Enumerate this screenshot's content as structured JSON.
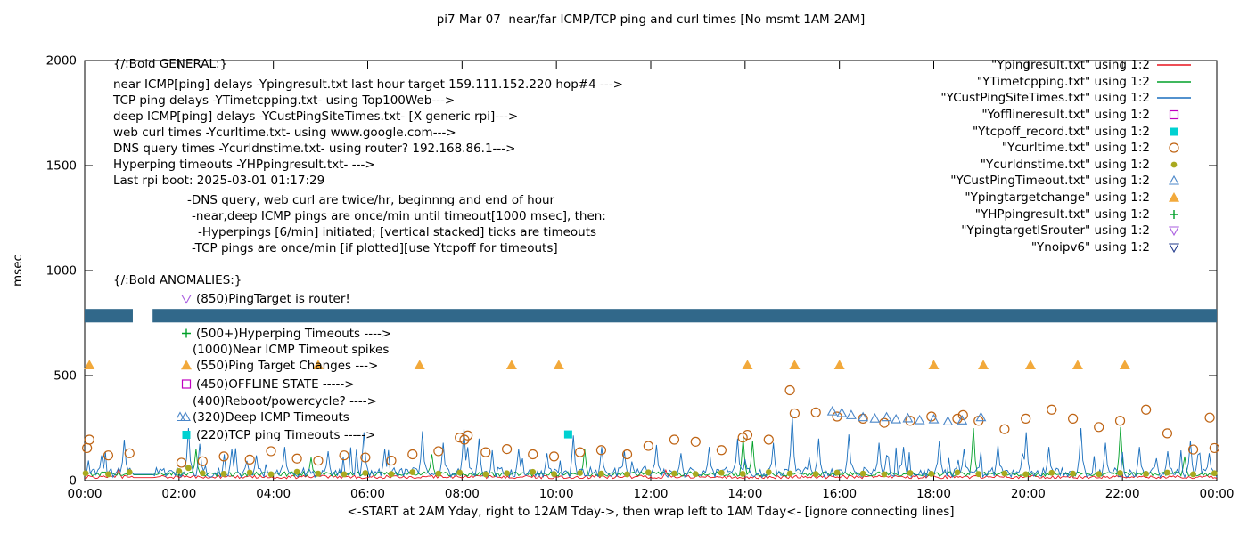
{
  "chart_data": {
    "type": "line",
    "title": "pi7 Mar 07  near/far ICMP/TCP ping and curl times [No msmt 1AM-2AM]",
    "xlabel": "<-START at 2AM Yday, right to 12AM Tday->, then wrap left to 1AM Tday<- [ignore connecting lines]",
    "ylabel": "msec",
    "x_range_hours": [
      0,
      24
    ],
    "ylim": [
      0,
      2000
    ],
    "yticks": [
      0,
      500,
      1000,
      1500,
      2000
    ],
    "xtick_labels": [
      "00:00",
      "02:00",
      "04:00",
      "06:00",
      "08:00",
      "10:00",
      "12:00",
      "14:00",
      "16:00",
      "18:00",
      "20:00",
      "22:00",
      "00:00"
    ],
    "grid": false,
    "legend_position": "top-right",
    "no_measurement_gap_hours": [
      1.0,
      1.45
    ],
    "seed": 20250307,
    "band": {
      "name": "Ynoipv6",
      "color": "#31688a",
      "level_msec": 785,
      "half_height_msec": 32,
      "segments_hours": [
        [
          0,
          1.02
        ],
        [
          1.44,
          24
        ]
      ]
    },
    "lines": [
      {
        "name": "Ypingresult.txt",
        "color": "#e8141e",
        "base_msec": 14,
        "noise_msec": 8,
        "spikes": [
          [
            0.7,
            55
          ],
          [
            12.3,
            50
          ]
        ]
      },
      {
        "name": "YTimetcpping.txt",
        "color": "#00a028",
        "base_msec": 27,
        "noise_msec": 11,
        "spikes": [
          [
            2.35,
            150
          ],
          [
            4.8,
            110
          ],
          [
            7.35,
            125
          ],
          [
            10.6,
            150
          ],
          [
            13.95,
            205
          ],
          [
            14.15,
            190
          ],
          [
            18.85,
            250
          ],
          [
            21.95,
            255
          ],
          [
            23.3,
            115
          ]
        ]
      },
      {
        "name": "YCustPingSiteTimes.txt",
        "color": "#1a6fbd",
        "base_msec": 30,
        "noise_msec": 24,
        "burst_prob": 0.08,
        "burst_amp": 110,
        "spikes": [
          [
            0.35,
            120
          ],
          [
            0.82,
            195
          ],
          [
            2.2,
            250
          ],
          [
            2.45,
            175
          ],
          [
            3.1,
            150
          ],
          [
            3.65,
            120
          ],
          [
            4.25,
            160
          ],
          [
            5.15,
            140
          ],
          [
            5.9,
            230
          ],
          [
            6.35,
            150
          ],
          [
            7.15,
            235
          ],
          [
            7.6,
            180
          ],
          [
            8.05,
            250
          ],
          [
            8.35,
            200
          ],
          [
            9.2,
            150
          ],
          [
            9.8,
            130
          ],
          [
            10.35,
            215
          ],
          [
            10.95,
            160
          ],
          [
            11.45,
            140
          ],
          [
            12.1,
            170
          ],
          [
            12.65,
            130
          ],
          [
            13.25,
            160
          ],
          [
            13.85,
            200
          ],
          [
            14.6,
            180
          ],
          [
            15.0,
            310
          ],
          [
            15.55,
            200
          ],
          [
            16.2,
            220
          ],
          [
            16.85,
            180
          ],
          [
            17.35,
            160
          ],
          [
            18.1,
            190
          ],
          [
            18.65,
            150
          ],
          [
            19.35,
            170
          ],
          [
            19.95,
            230
          ],
          [
            20.45,
            160
          ],
          [
            21.1,
            250
          ],
          [
            21.65,
            180
          ],
          [
            22.35,
            160
          ],
          [
            22.95,
            140
          ],
          [
            23.45,
            190
          ],
          [
            23.85,
            130
          ]
        ]
      }
    ],
    "points": [
      {
        "name": "Yofflineresult.txt",
        "shape": "square-o",
        "color": "#c000c0",
        "data": []
      },
      {
        "name": "Ytcpoff_record.txt",
        "shape": "square-f",
        "color": "#00d1d1",
        "data": [
          [
            10.25,
            220
          ]
        ]
      },
      {
        "name": "Ycurltime.txt",
        "shape": "circle-o",
        "color": "#bf6414",
        "data": [
          [
            0.05,
            155
          ],
          [
            0.1,
            195
          ],
          [
            0.5,
            120
          ],
          [
            0.95,
            130
          ],
          [
            2.05,
            85
          ],
          [
            2.5,
            92
          ],
          [
            2.95,
            115
          ],
          [
            3.5,
            100
          ],
          [
            3.95,
            140
          ],
          [
            4.5,
            105
          ],
          [
            4.95,
            95
          ],
          [
            5.5,
            120
          ],
          [
            5.95,
            110
          ],
          [
            6.5,
            95
          ],
          [
            6.95,
            125
          ],
          [
            7.5,
            140
          ],
          [
            7.95,
            205
          ],
          [
            8.05,
            195
          ],
          [
            8.12,
            215
          ],
          [
            8.5,
            135
          ],
          [
            8.95,
            150
          ],
          [
            9.5,
            125
          ],
          [
            9.95,
            115
          ],
          [
            10.5,
            135
          ],
          [
            10.95,
            145
          ],
          [
            11.5,
            125
          ],
          [
            11.95,
            165
          ],
          [
            12.5,
            195
          ],
          [
            12.95,
            185
          ],
          [
            13.5,
            145
          ],
          [
            13.95,
            205
          ],
          [
            14.05,
            218
          ],
          [
            14.5,
            195
          ],
          [
            14.95,
            430
          ],
          [
            15.05,
            320
          ],
          [
            15.5,
            325
          ],
          [
            15.95,
            305
          ],
          [
            16.5,
            295
          ],
          [
            16.95,
            275
          ],
          [
            17.5,
            285
          ],
          [
            17.95,
            305
          ],
          [
            18.5,
            295
          ],
          [
            18.62,
            312
          ],
          [
            18.95,
            285
          ],
          [
            19.5,
            245
          ],
          [
            19.95,
            295
          ],
          [
            20.5,
            338
          ],
          [
            20.95,
            295
          ],
          [
            21.5,
            255
          ],
          [
            21.95,
            285
          ],
          [
            22.5,
            338
          ],
          [
            22.95,
            225
          ],
          [
            23.5,
            148
          ],
          [
            23.85,
            300
          ],
          [
            23.95,
            155
          ]
        ]
      },
      {
        "name": "Ycurldnstime.txt",
        "shape": "circle-f",
        "color": "#a9a91f",
        "data": [
          [
            0.02,
            35
          ],
          [
            0.5,
            30
          ],
          [
            0.95,
            40
          ],
          [
            2.0,
            45
          ],
          [
            2.2,
            60
          ],
          [
            2.5,
            35
          ],
          [
            2.95,
            32
          ],
          [
            3.5,
            38
          ],
          [
            3.95,
            30
          ],
          [
            4.5,
            42
          ],
          [
            4.95,
            33
          ],
          [
            5.5,
            30
          ],
          [
            5.95,
            36
          ],
          [
            6.5,
            31
          ],
          [
            6.95,
            40
          ],
          [
            7.5,
            33
          ],
          [
            7.95,
            38
          ],
          [
            8.5,
            30
          ],
          [
            8.95,
            35
          ],
          [
            9.5,
            41
          ],
          [
            9.95,
            31
          ],
          [
            10.5,
            36
          ],
          [
            10.95,
            33
          ],
          [
            11.5,
            30
          ],
          [
            11.95,
            39
          ],
          [
            12.5,
            34
          ],
          [
            12.95,
            31
          ],
          [
            13.5,
            37
          ],
          [
            13.95,
            32
          ],
          [
            14.5,
            40
          ],
          [
            14.95,
            34
          ],
          [
            15.5,
            31
          ],
          [
            15.95,
            38
          ],
          [
            16.5,
            33
          ],
          [
            16.95,
            30
          ],
          [
            17.5,
            36
          ],
          [
            17.95,
            32
          ],
          [
            18.5,
            39
          ],
          [
            18.95,
            31
          ],
          [
            19.5,
            34
          ],
          [
            19.95,
            30
          ],
          [
            20.5,
            37
          ],
          [
            20.95,
            33
          ],
          [
            21.5,
            31
          ],
          [
            21.95,
            36
          ],
          [
            22.5,
            32
          ],
          [
            22.95,
            38
          ],
          [
            23.5,
            30
          ],
          [
            23.95,
            35
          ]
        ]
      },
      {
        "name": "YCustPingTimeout.txt",
        "shape": "tri-up-o",
        "color": "#4a86c8",
        "data": [
          [
            15.85,
            330
          ],
          [
            16.05,
            322
          ],
          [
            16.25,
            312
          ],
          [
            16.5,
            302
          ],
          [
            16.75,
            296
          ],
          [
            17.0,
            302
          ],
          [
            17.2,
            292
          ],
          [
            17.45,
            297
          ],
          [
            17.7,
            288
          ],
          [
            18.0,
            292
          ],
          [
            18.3,
            282
          ],
          [
            18.6,
            287
          ],
          [
            19.0,
            302
          ]
        ]
      },
      {
        "name": "Ypingtargetchange",
        "shape": "tri-up-f",
        "color": "#f2a93b",
        "data": [
          [
            0.1,
            550
          ],
          [
            4.95,
            550
          ],
          [
            7.1,
            550
          ],
          [
            9.05,
            550
          ],
          [
            10.05,
            550
          ],
          [
            14.05,
            550
          ],
          [
            15.05,
            550
          ],
          [
            16.0,
            550
          ],
          [
            18.0,
            550
          ],
          [
            19.05,
            550
          ],
          [
            20.05,
            550
          ],
          [
            21.05,
            550
          ],
          [
            22.05,
            550
          ]
        ]
      },
      {
        "name": "YHPpingresult.txt",
        "shape": "plus",
        "color": "#00a028",
        "data": []
      },
      {
        "name": "YpingtargetISrouter",
        "shape": "tri-down-o",
        "color": "#a95ddf",
        "data": []
      },
      {
        "name": "Ynoipv6",
        "shape": "tri-down-o",
        "color": "#223a8c",
        "data": []
      }
    ],
    "legend": [
      {
        "label": "\"Ypingresult.txt\" using 1:2",
        "sample": "line",
        "color": "#e8141e"
      },
      {
        "label": "\"YTimetcpping.txt\" using 1:2",
        "sample": "line",
        "color": "#00a028"
      },
      {
        "label": "\"YCustPingSiteTimes.txt\" using 1:2",
        "sample": "line",
        "color": "#1a6fbd"
      },
      {
        "label": "\"Yofflineresult.txt\" using 1:2",
        "sample": "square-o",
        "color": "#c000c0"
      },
      {
        "label": "\"Ytcpoff_record.txt\" using 1:2",
        "sample": "square-f",
        "color": "#00d1d1"
      },
      {
        "label": "\"Ycurltime.txt\" using 1:2",
        "sample": "circle-o",
        "color": "#bf6414"
      },
      {
        "label": "\"Ycurldnstime.txt\" using 1:2",
        "sample": "circle-f",
        "color": "#a9a91f"
      },
      {
        "label": "\"YCustPingTimeout.txt\" using 1:2",
        "sample": "tri-up-o",
        "color": "#4a86c8"
      },
      {
        "label": "\"Ypingtargetchange\" using 1:2",
        "sample": "tri-up-f",
        "color": "#f2a93b"
      },
      {
        "label": "\"YHPpingresult.txt\" using 1:2",
        "sample": "plus",
        "color": "#00a028"
      },
      {
        "label": "\"YpingtargetISrouter\" using 1:2",
        "sample": "tri-down-o",
        "color": "#a95ddf"
      },
      {
        "label": "\"Ynoipv6\" using 1:2",
        "sample": "tri-down-o",
        "color": "#223a8c"
      }
    ],
    "annotations": [
      {
        "x": 127,
        "y": 72,
        "text": "{/:Bold GENERAL:}"
      },
      {
        "x": 127,
        "y": 95,
        "text": "near ICMP[ping] delays -Ypingresult.txt last hour target 159.111.152.220 hop#4 --->"
      },
      {
        "x": 127,
        "y": 113,
        "text": "TCP ping delays -YTimetcpping.txt- using Top100Web--->"
      },
      {
        "x": 127,
        "y": 131,
        "text": "deep ICMP[ping] delays -YCustPingSiteTimes.txt- [X generic rpi]--->"
      },
      {
        "x": 127,
        "y": 149,
        "text": "web curl times -Ycurltime.txt- using www.google.com--->"
      },
      {
        "x": 127,
        "y": 167,
        "text": "DNS query times -Ycurldnstime.txt- using router? 192.168.86.1--->"
      },
      {
        "x": 127,
        "y": 185,
        "text": "Hyperping timeouts -YHPpingresult.txt- --->"
      },
      {
        "x": 127,
        "y": 203,
        "text": "Last rpi boot: 2025-03-01 01:17:29"
      },
      {
        "x": 210,
        "y": 225,
        "text": "-DNS query, web curl are twice/hr, beginnng and end of hour"
      },
      {
        "x": 215,
        "y": 243,
        "text": "-near,deep ICMP pings are once/min until timeout[1000 msec], then:"
      },
      {
        "x": 222,
        "y": 261,
        "text": "-Hyperpings [6/min] initiated; [vertical stacked] ticks are timeouts"
      },
      {
        "x": 215,
        "y": 279,
        "text": "-TCP pings are once/min [if plotted][use Ytcpoff for timeouts]"
      },
      {
        "x": 127,
        "y": 315,
        "text": "{/:Bold ANOMALIES:}"
      },
      {
        "x": 202,
        "y": 336,
        "text": "(850)PingTarget is router!",
        "marker": {
          "shape": "tri-down-o",
          "color": "#a95ddf"
        }
      },
      {
        "x": 202,
        "y": 375,
        "text": "(500+)Hyperping Timeouts ---->",
        "marker": {
          "shape": "plus",
          "color": "#00a028"
        }
      },
      {
        "x": 216,
        "y": 393,
        "text": "(1000)Near ICMP Timeout spikes"
      },
      {
        "x": 202,
        "y": 411,
        "text": "(550)Ping Target Changes --->",
        "marker": {
          "shape": "tri-up-f",
          "color": "#f2a93b"
        }
      },
      {
        "x": 202,
        "y": 432,
        "text": "(450)OFFLINE STATE ----->",
        "marker": {
          "shape": "square-o",
          "color": "#c000c0"
        }
      },
      {
        "x": 216,
        "y": 451,
        "text": "(400)Reboot/powercycle? ---->"
      },
      {
        "x": 198,
        "y": 469,
        "text": "(320)Deep ICMP Timeouts",
        "marker": {
          "shape": "tri-up-o-double",
          "color": "#4a86c8"
        }
      },
      {
        "x": 202,
        "y": 489,
        "text": "(220)TCP ping Timeouts ----->",
        "marker": {
          "shape": "square-f",
          "color": "#00d1d1"
        }
      }
    ]
  }
}
